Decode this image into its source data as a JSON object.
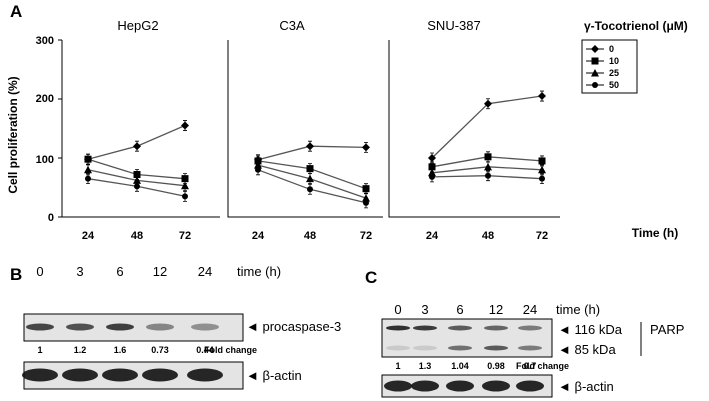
{
  "panel_labels": {
    "a": "A",
    "b": "B",
    "c": "C"
  },
  "chart_data": [
    {
      "type": "line",
      "title": "HepG2",
      "x": [
        24,
        48,
        72
      ],
      "ylim": [
        0,
        300
      ],
      "yticks": [
        "0",
        "100",
        "200",
        "300"
      ],
      "ylabel": "Cell proliferation (%)",
      "series": [
        {
          "name": "0",
          "values": [
            98,
            120,
            155
          ]
        },
        {
          "name": "10",
          "values": [
            98,
            72,
            65
          ]
        },
        {
          "name": "25",
          "values": [
            80,
            62,
            53
          ]
        },
        {
          "name": "50",
          "values": [
            65,
            52,
            35
          ]
        }
      ]
    },
    {
      "type": "line",
      "title": "C3A",
      "x": [
        24,
        48,
        72
      ],
      "ylim": [
        0,
        300
      ],
      "series": [
        {
          "name": "0",
          "values": [
            97,
            120,
            118
          ]
        },
        {
          "name": "10",
          "values": [
            95,
            82,
            48
          ]
        },
        {
          "name": "25",
          "values": [
            88,
            65,
            32
          ]
        },
        {
          "name": "50",
          "values": [
            80,
            47,
            24
          ]
        }
      ]
    },
    {
      "type": "line",
      "title": "SNU-387",
      "x": [
        24,
        48,
        72
      ],
      "ylim": [
        0,
        300
      ],
      "xlabel": "Time (h)",
      "series": [
        {
          "name": "0",
          "values": [
            100,
            192,
            205
          ]
        },
        {
          "name": "10",
          "values": [
            85,
            102,
            95
          ]
        },
        {
          "name": "25",
          "values": [
            75,
            85,
            80
          ]
        },
        {
          "name": "50",
          "values": [
            68,
            70,
            65
          ]
        }
      ]
    }
  ],
  "legend": {
    "title": "γ-Tocotrienol (μM)",
    "entries": [
      "0",
      "10",
      "25",
      "50"
    ]
  },
  "xticks": [
    "24",
    "48",
    "72"
  ],
  "blot_b": {
    "time_label": "time (h)",
    "lanes": [
      "0",
      "3",
      "6",
      "12",
      "24"
    ],
    "band1_label": "◄ procaspase-3",
    "fold_values": [
      "1",
      "1.2",
      "1.6",
      "0.73",
      "0.44"
    ],
    "fold_label": "Fold change",
    "band2_label": "◄ β-actin"
  },
  "blot_c": {
    "time_label": "time (h)",
    "lanes": [
      "0",
      "3",
      "6",
      "12",
      "24"
    ],
    "band1_label": "◄ 116 kDa",
    "band2_label": "◄ 85 kDa",
    "protein_label": "PARP",
    "fold_values": [
      "1",
      "1.3",
      "1.04",
      "0.98",
      "0.7"
    ],
    "fold_label": "Fold change",
    "band3_label": "◄ β-actin"
  }
}
